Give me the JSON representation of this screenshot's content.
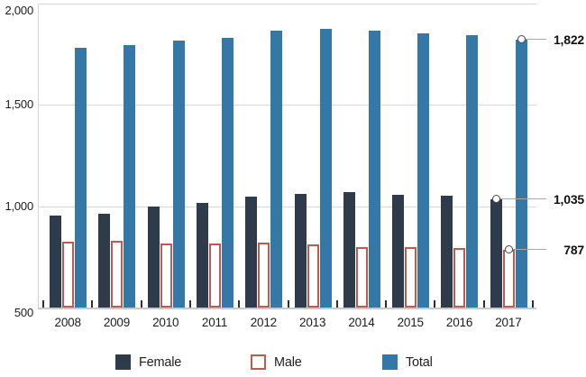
{
  "chart_data": {
    "type": "bar",
    "title": "",
    "categories": [
      "2008",
      "2009",
      "2010",
      "2011",
      "2012",
      "2013",
      "2014",
      "2015",
      "2016",
      "2017"
    ],
    "series": [
      {
        "name": "Female",
        "style": "solid",
        "color": "#2e3b4b",
        "values": [
          955,
          965,
          1000,
          1015,
          1048,
          1062,
          1068,
          1056,
          1052,
          1035
        ]
      },
      {
        "name": "Male",
        "style": "outline",
        "color": "#ffffff",
        "border_color": "#bf5a50",
        "values": [
          825,
          830,
          818,
          815,
          820,
          812,
          798,
          797,
          792,
          787
        ]
      },
      {
        "name": "Total",
        "style": "solid",
        "color": "#3478a8",
        "values": [
          1780,
          1795,
          1818,
          1830,
          1868,
          1874,
          1866,
          1853,
          1844,
          1822
        ]
      }
    ],
    "xlabel": "",
    "ylabel": "",
    "ylim": [
      500,
      2000
    ],
    "yticks": [
      {
        "value": 2000,
        "label": "2,000"
      },
      {
        "value": 1500,
        "label": "1,500"
      },
      {
        "value": 1000,
        "label": "1,000"
      },
      {
        "value": 500,
        "label": "500"
      }
    ],
    "grid": "horizontal",
    "legend_position": "bottom",
    "annotations": [
      {
        "series": "Total",
        "category": "2017",
        "value": 1822,
        "label": "1,822"
      },
      {
        "series": "Female",
        "category": "2017",
        "value": 1035,
        "label": "1,035"
      },
      {
        "series": "Male",
        "category": "2017",
        "value": 787,
        "label": "787"
      }
    ]
  },
  "colors": {
    "female_bar": "#2e3b4b",
    "male_bar_border": "#bf5a50",
    "total_bar": "#3478a8",
    "gridline": "#d9d9d9",
    "axis": "#c9c9c9",
    "callout_line": "#a9a9a9",
    "text": "#1c1c1c"
  }
}
